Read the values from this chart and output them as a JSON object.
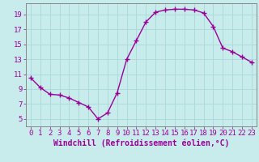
{
  "x": [
    0,
    1,
    2,
    3,
    4,
    5,
    6,
    7,
    8,
    9,
    10,
    11,
    12,
    13,
    14,
    15,
    16,
    17,
    18,
    19,
    20,
    21,
    22,
    23
  ],
  "y": [
    10.5,
    9.2,
    8.3,
    8.2,
    7.8,
    7.2,
    6.6,
    5.0,
    5.8,
    8.5,
    13.0,
    15.5,
    18.0,
    19.3,
    19.6,
    19.7,
    19.7,
    19.6,
    19.2,
    17.4,
    14.5,
    14.0,
    13.3,
    12.6
  ],
  "line_color": "#990099",
  "marker": "+",
  "marker_size": 4,
  "bg_color": "#c8ecec",
  "grid_color": "#a8d8d8",
  "axis_color": "#777777",
  "tick_color": "#990099",
  "xlabel": "Windchill (Refroidissement éolien,°C)",
  "ylabel": "",
  "xlim": [
    -0.5,
    23.5
  ],
  "ylim": [
    4,
    20.5
  ],
  "yticks": [
    5,
    7,
    9,
    11,
    13,
    15,
    17,
    19
  ],
  "xticks": [
    0,
    1,
    2,
    3,
    4,
    5,
    6,
    7,
    8,
    9,
    10,
    11,
    12,
    13,
    14,
    15,
    16,
    17,
    18,
    19,
    20,
    21,
    22,
    23
  ],
  "font_size": 6.5,
  "xlabel_fontsize": 7,
  "line_width": 1.0,
  "marker_edge_width": 1.0
}
